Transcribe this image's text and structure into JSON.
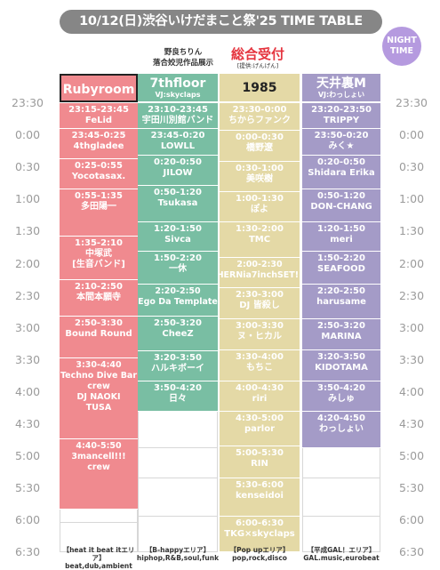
{
  "header": {
    "title": "10/12(日)渋谷いけだまこと祭'25 TIME TABLE",
    "badge_line1": "NIGHT",
    "badge_line2": "TIME",
    "exhibit_line1": "野良ちりん",
    "exhibit_line2": "落合姣児作品展示",
    "reception_main": "総合受付",
    "reception_sub": "[提供:げんげん]"
  },
  "times_left": [
    "23:30",
    "0:00",
    "0:30",
    "1:00",
    "1:30",
    "2:00",
    "2:30",
    "3:00",
    "3:30",
    "4:00",
    "4:30",
    "5:00",
    "5:30",
    "6:00",
    "6:30"
  ],
  "times_right": [
    "23:30",
    "0:00",
    "0:30",
    "1:00",
    "1:30",
    "2:00",
    "2:30",
    "3:00",
    "3:30",
    "4:00",
    "4:30",
    "5:00",
    "5:30",
    "6:00",
    "6:30"
  ],
  "stages": [
    {
      "name": "Rubyroom",
      "vj": "",
      "color": "#f08a8f",
      "head_color": "#f08a8f",
      "dark_head": false,
      "slots": [
        {
          "t": "23:15-23:45",
          "a": "FeLid",
          "start": 0,
          "end": 28
        },
        {
          "t": "23:45-0:25",
          "a": "4thgladee",
          "start": 28,
          "end": 62
        },
        {
          "t": "0:25-0:55",
          "a": "Yocotasax.",
          "start": 62,
          "end": 95
        },
        {
          "t": "0:55-1:35",
          "a": "多田陽一",
          "start": 95,
          "end": 147
        },
        {
          "t": "1:35-2:10",
          "a": "中塚武\n[生音バンド]",
          "start": 147,
          "end": 195
        },
        {
          "t": "2:10-2:50",
          "a": "本間本願寺",
          "start": 195,
          "end": 235
        },
        {
          "t": "2:50-3:30",
          "a": "Bound Round",
          "start": 235,
          "end": 281
        },
        {
          "t": "3:30-4:40",
          "a": "Techno Dive Bar\ncrew\nDJ NAOKI\nTUSA",
          "start": 281,
          "end": 370
        },
        {
          "t": "4:40-5:50",
          "a": "3mancell!!!\ncrew",
          "start": 370,
          "end": 448
        },
        {
          "t": "",
          "a": "",
          "start": 448,
          "end": 462,
          "empty": true
        },
        {
          "t": "",
          "a": "",
          "start": 462,
          "end": 495,
          "empty": true
        }
      ]
    },
    {
      "name": "7thfloor",
      "vj": "VJ:skyclaps",
      "color": "#79bea3",
      "head_color": "#79bea3",
      "dark_head": false,
      "slots": [
        {
          "t": "23:10-23:45",
          "a": "宇田川別館バンド",
          "start": 0,
          "end": 28
        },
        {
          "t": "23:45-0:20",
          "a": "LOWLL",
          "start": 28,
          "end": 58
        },
        {
          "t": "0:20-0:50",
          "a": "JILOW",
          "start": 58,
          "end": 91
        },
        {
          "t": "0:50-1:20",
          "a": "Tsukasa",
          "start": 91,
          "end": 131
        },
        {
          "t": "1:20-1:50",
          "a": "Sivca",
          "start": 131,
          "end": 164
        },
        {
          "t": "1:50-2:20",
          "a": "一休",
          "start": 164,
          "end": 200
        },
        {
          "t": "2:20-2:50",
          "a": "Ego Da Template",
          "start": 200,
          "end": 235
        },
        {
          "t": "2:50-3:20",
          "a": "CheeZ",
          "start": 235,
          "end": 273
        },
        {
          "t": "3:20-3:50",
          "a": "ハルキボーイ",
          "start": 273,
          "end": 307
        },
        {
          "t": "3:50-4:20",
          "a": "日々",
          "start": 307,
          "end": 340
        },
        {
          "t": "",
          "a": "",
          "start": 340,
          "end": 380,
          "empty": true
        },
        {
          "t": "",
          "a": "",
          "start": 380,
          "end": 413,
          "empty": true
        },
        {
          "t": "",
          "a": "",
          "start": 413,
          "end": 455,
          "empty": true
        },
        {
          "t": "",
          "a": "",
          "start": 455,
          "end": 495,
          "empty": true
        }
      ]
    },
    {
      "name": "1985",
      "vj": "",
      "color": "#e4d9a6",
      "head_color": "#e4d9a6",
      "dark_head": true,
      "slots": [
        {
          "t": "23:30-0:00",
          "a": "ちからファンク",
          "start": 0,
          "end": 30
        },
        {
          "t": "0:00-0:30",
          "a": "橋野遼",
          "start": 30,
          "end": 65
        },
        {
          "t": "0:30-1:00",
          "a": "美咲樹",
          "start": 65,
          "end": 98
        },
        {
          "t": "1:00-1:30",
          "a": "ぽよ",
          "start": 98,
          "end": 131
        },
        {
          "t": "1:30-2:00",
          "a": "TMC",
          "start": 131,
          "end": 170
        },
        {
          "t": "2:00-2:30",
          "a": "HERNia7inchSET!!",
          "start": 170,
          "end": 204
        },
        {
          "t": "2:30-3:00",
          "a": "DJ 皆殺し",
          "start": 204,
          "end": 238
        },
        {
          "t": "3:00-3:30",
          "a": "ヌ・ヒカル",
          "start": 238,
          "end": 272
        },
        {
          "t": "3:30-4:00",
          "a": "もちこ",
          "start": 272,
          "end": 307
        },
        {
          "t": "4:00-4:30",
          "a": "riri",
          "start": 307,
          "end": 340
        },
        {
          "t": "4:30-5:00",
          "a": "parlor",
          "start": 340,
          "end": 378
        },
        {
          "t": "5:00-5:30",
          "a": "RIN",
          "start": 378,
          "end": 413
        },
        {
          "t": "5:30-6:00",
          "a": "kenseidoi",
          "start": 413,
          "end": 455
        },
        {
          "t": "6:00-6:30",
          "a": "TKG×skyclaps",
          "start": 455,
          "end": 495
        }
      ]
    },
    {
      "name": "天井裏M",
      "vj": "VJ:わっしょい",
      "color": "#a49bc7",
      "head_color": "#a49bc7",
      "dark_head": false,
      "slots": [
        {
          "t": "23:20-23:50",
          "a": "TRIPPY",
          "start": 0,
          "end": 28
        },
        {
          "t": "23:50-0:20",
          "a": "みく★",
          "start": 28,
          "end": 58
        },
        {
          "t": "0:20-0:50",
          "a": "Shidara Erika",
          "start": 58,
          "end": 95
        },
        {
          "t": "0:50-1:20",
          "a": "DON-CHANG",
          "start": 95,
          "end": 131
        },
        {
          "t": "1:20-1:50",
          "a": "meri",
          "start": 131,
          "end": 164
        },
        {
          "t": "1:50-2:20",
          "a": "SEAFOOD",
          "start": 164,
          "end": 200
        },
        {
          "t": "2:20-2:50",
          "a": "harusame",
          "start": 200,
          "end": 238
        },
        {
          "t": "2:50-3:20",
          "a": "MARINA",
          "start": 238,
          "end": 272
        },
        {
          "t": "3:20-3:50",
          "a": "KIDOTAMA",
          "start": 272,
          "end": 307
        },
        {
          "t": "3:50-4:20",
          "a": "みしゅ",
          "start": 307,
          "end": 340
        },
        {
          "t": "4:20-4:50",
          "a": "わっしょい",
          "start": 340,
          "end": 380
        },
        {
          "t": "",
          "a": "",
          "start": 380,
          "end": 413,
          "empty": true
        },
        {
          "t": "",
          "a": "",
          "start": 413,
          "end": 455,
          "empty": true
        },
        {
          "t": "",
          "a": "",
          "start": 455,
          "end": 495,
          "empty": true
        }
      ]
    }
  ],
  "areas": [
    {
      "l1": "【heat it beat itエリア】",
      "l2": "beat,dub,ambient"
    },
    {
      "l1": "【B-happyエリア】",
      "l2": "hiphop,R&B,soul,funk"
    },
    {
      "l1": "【Pop upエリア】",
      "l2": "pop,rock,disco"
    },
    {
      "l1": "【平成GAL！エリア】",
      "l2": "GAL.music,eurobeat"
    }
  ]
}
